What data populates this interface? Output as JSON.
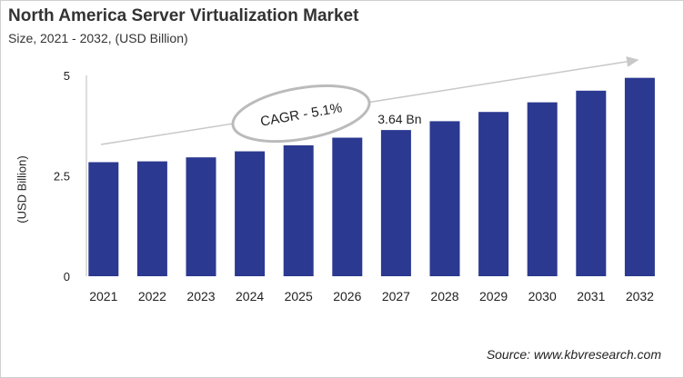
{
  "chart_data": {
    "type": "bar",
    "title": "North America Server Virtualization Market",
    "subtitle": "Size, 2021 - 2032, (USD Billion)",
    "xlabel": "",
    "ylabel": "(USD Billion)",
    "ylim": [
      0,
      5
    ],
    "yticks": [
      "0",
      "2.5",
      "5"
    ],
    "categories": [
      "2021",
      "2022",
      "2023",
      "2024",
      "2025",
      "2026",
      "2027",
      "2028",
      "2029",
      "2030",
      "2031",
      "2032"
    ],
    "values": [
      2.84,
      2.86,
      2.96,
      3.11,
      3.26,
      3.45,
      3.64,
      3.86,
      4.09,
      4.33,
      4.62,
      4.94
    ],
    "annotations": {
      "cagr": "CAGR - 5.1%",
      "bar_label": "3.64 Bn",
      "bar_label_index": 6
    },
    "bar_color": "#2b3990",
    "grid": false,
    "source": "Source: www.kbvresearch.com"
  }
}
